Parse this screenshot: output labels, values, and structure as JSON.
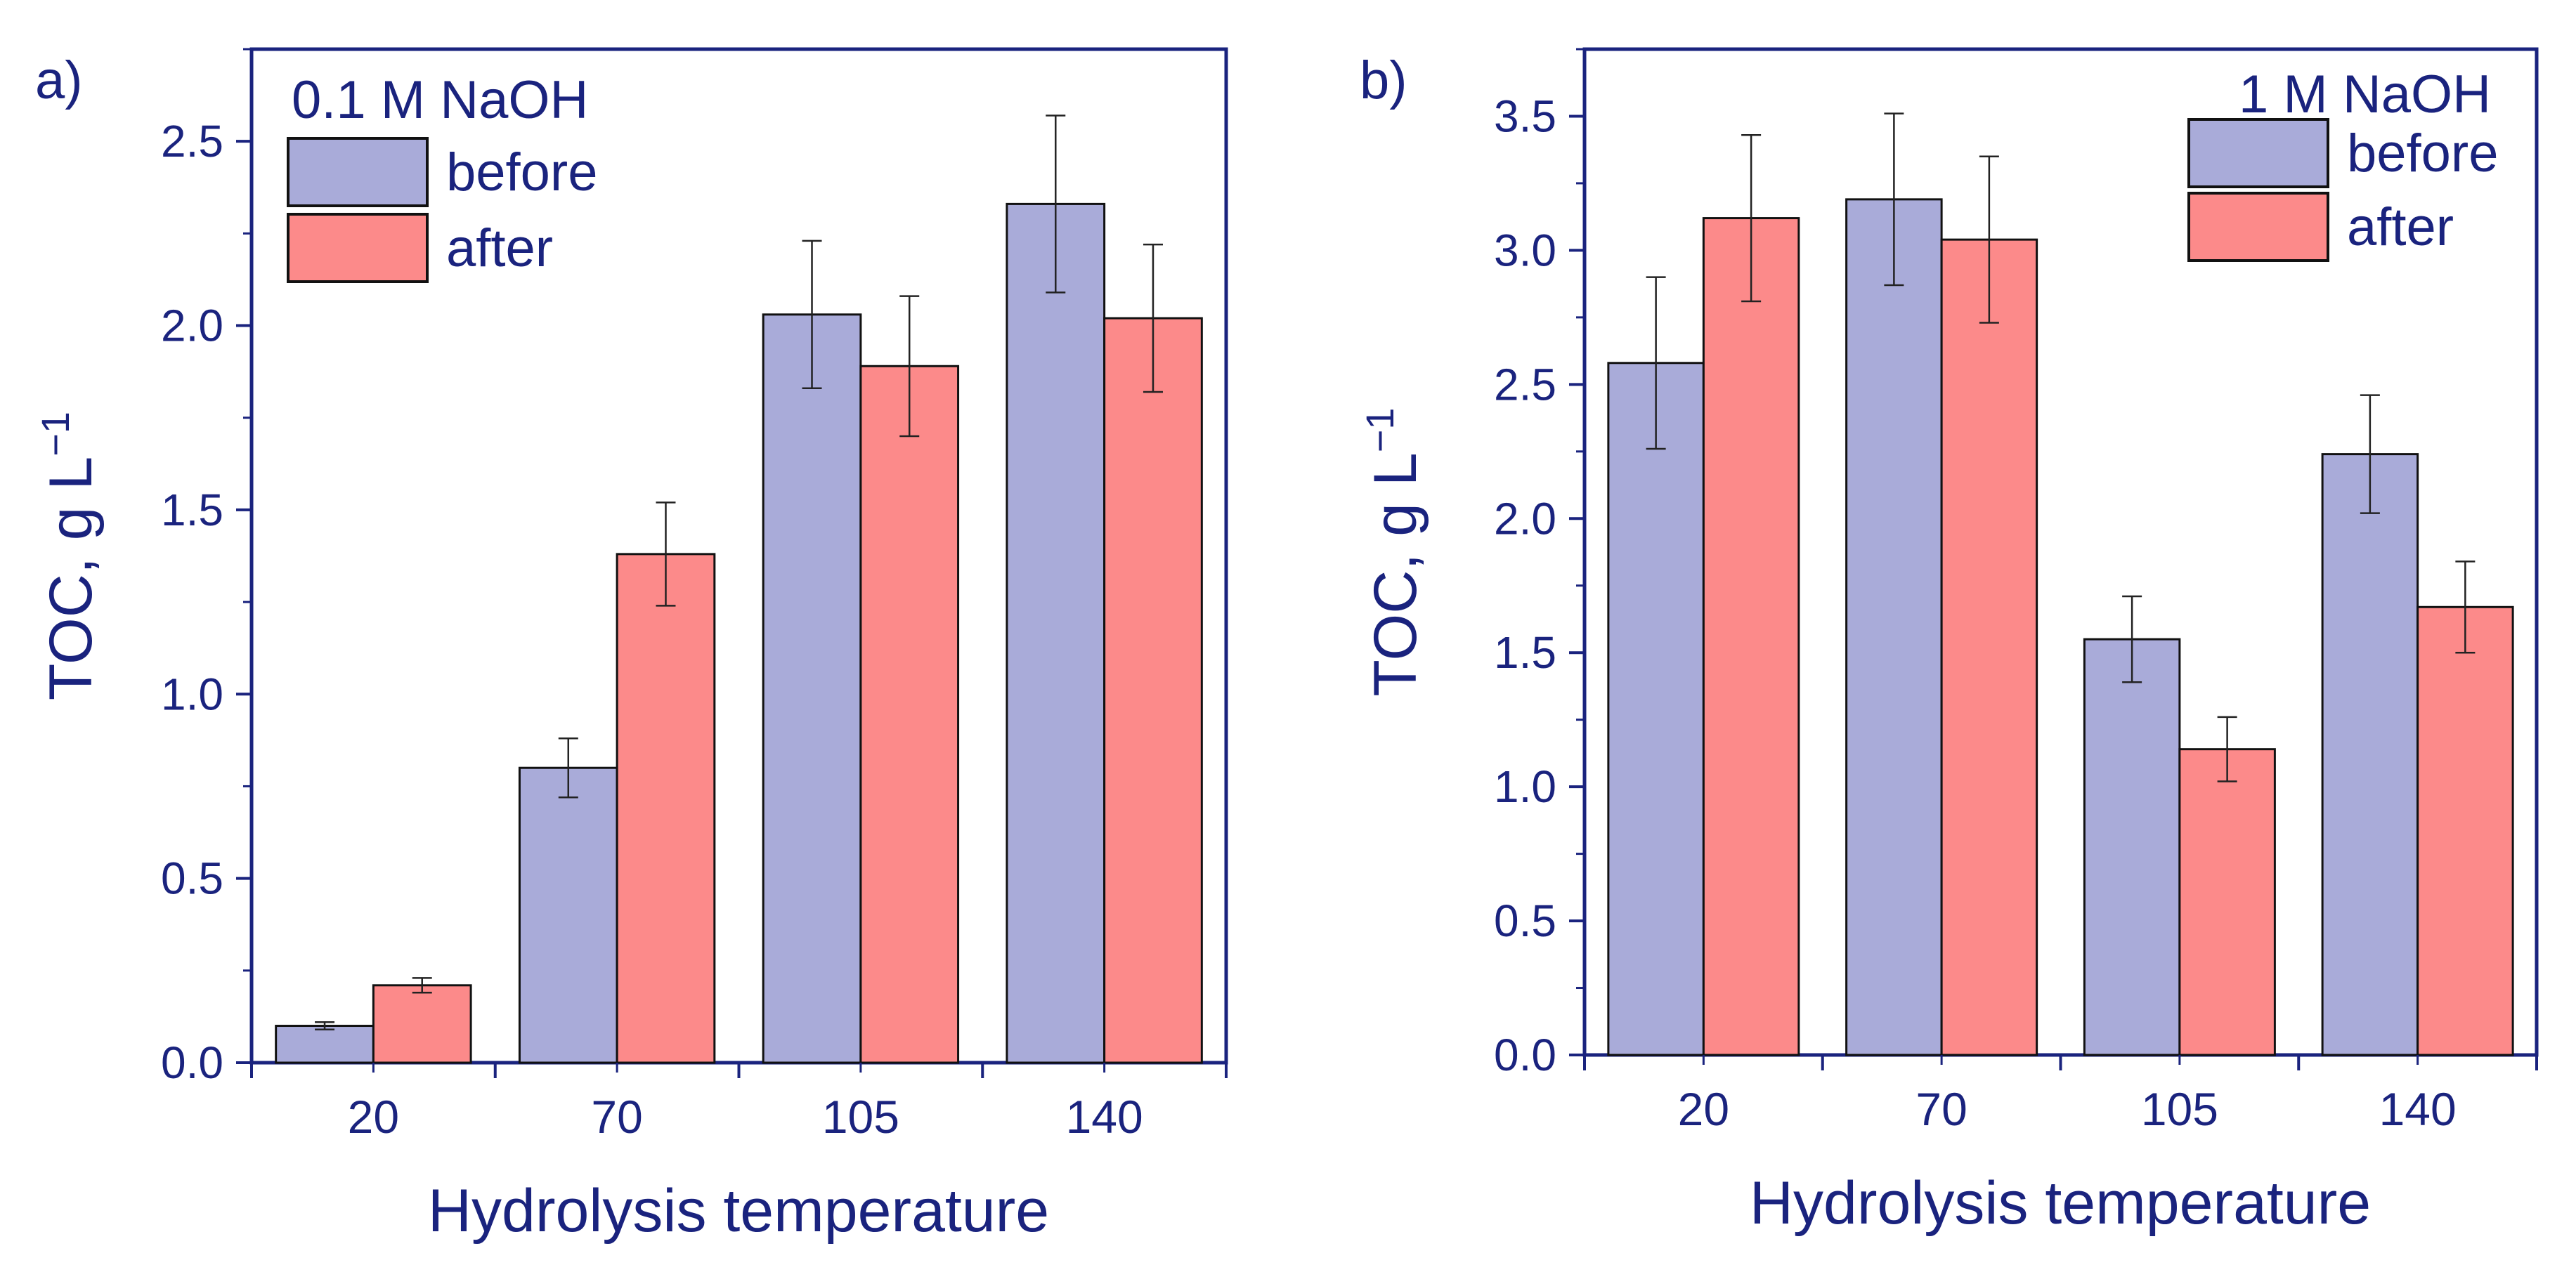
{
  "chart_data": [
    {
      "type": "bar",
      "panel_label": "a)",
      "title": "0.1 M NaOH",
      "xlabel": "Hydrolysis temperature",
      "ylabel": "TOC, g L",
      "ylabel_sup": "−1",
      "categories": [
        "20",
        "70",
        "105",
        "140"
      ],
      "ylim": [
        0,
        2.75
      ],
      "yticks": [
        0.0,
        0.5,
        1.0,
        1.5,
        2.0,
        2.5
      ],
      "ytick_labels": [
        "0.0",
        "0.5",
        "1.0",
        "1.5",
        "2.0",
        "2.5"
      ],
      "legend_position": "top-left",
      "series": [
        {
          "name": "before",
          "color": "#a9abd9",
          "values": [
            0.1,
            0.8,
            2.03,
            2.33
          ],
          "errors": [
            0.01,
            0.08,
            0.2,
            0.24
          ]
        },
        {
          "name": "after",
          "color": "#fc8a8a",
          "values": [
            0.21,
            1.38,
            1.89,
            2.02
          ],
          "errors": [
            0.02,
            0.14,
            0.19,
            0.2
          ]
        }
      ]
    },
    {
      "type": "bar",
      "panel_label": "b)",
      "title": "1 M NaOH",
      "xlabel": "Hydrolysis temperature",
      "ylabel": "TOC, g L",
      "ylabel_sup": "−1",
      "categories": [
        "20",
        "70",
        "105",
        "140"
      ],
      "ylim": [
        0,
        3.75
      ],
      "yticks": [
        0.0,
        0.5,
        1.0,
        1.5,
        2.0,
        2.5,
        3.0,
        3.5
      ],
      "ytick_labels": [
        "0.0",
        "0.5",
        "1.0",
        "1.5",
        "2.0",
        "2.5",
        "3.0",
        "3.5"
      ],
      "legend_position": "top-right",
      "series": [
        {
          "name": "before",
          "color": "#a9abd9",
          "values": [
            2.58,
            3.19,
            1.55,
            2.24
          ],
          "errors": [
            0.32,
            0.32,
            0.16,
            0.22
          ]
        },
        {
          "name": "after",
          "color": "#fc8a8a",
          "values": [
            3.12,
            3.04,
            1.14,
            1.67
          ],
          "errors": [
            0.31,
            0.31,
            0.12,
            0.17
          ]
        }
      ]
    }
  ]
}
